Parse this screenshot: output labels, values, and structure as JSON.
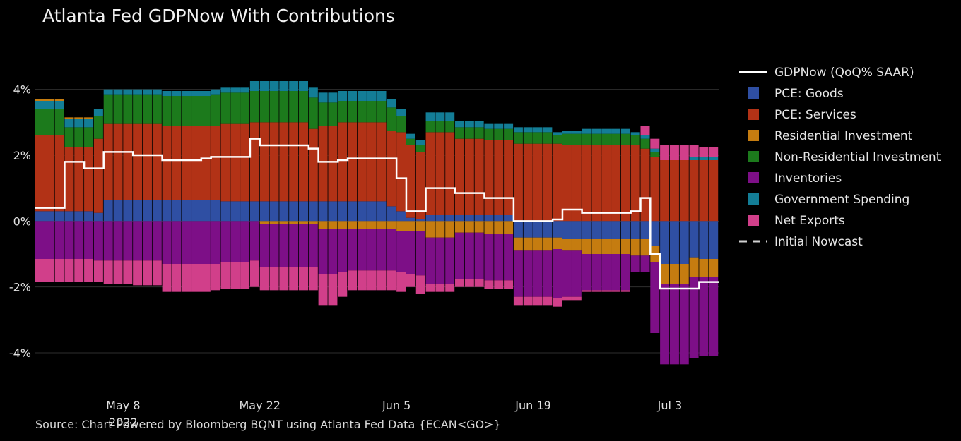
{
  "title": "Atlanta Fed GDPNow With Contributions",
  "source": "Source: Chart Powered by Bloomberg BQNT using Atlanta Fed Data   {ECAN<GO>}",
  "chart_data": {
    "type": "bar",
    "stacked": true,
    "x_start": "2022-04-29",
    "x_end": "2022-07-08",
    "ylim": [
      -5.5,
      5.0
    ],
    "yticks": [
      {
        "v": 4,
        "label": "4%"
      },
      {
        "v": 2,
        "label": "2%"
      },
      {
        "v": 0,
        "label": "0%"
      },
      {
        "v": -2,
        "label": "-2%"
      },
      {
        "v": -4,
        "label": "-4%"
      }
    ],
    "xticks": [
      {
        "date": "2022-05-08",
        "label": "May 8",
        "sub": "2022"
      },
      {
        "date": "2022-05-22",
        "label": "May 22"
      },
      {
        "date": "2022-06-05",
        "label": "Jun 5"
      },
      {
        "date": "2022-06-19",
        "label": "Jun 19"
      },
      {
        "date": "2022-07-03",
        "label": "Jul 3"
      }
    ],
    "grid": true,
    "legend_position": "right",
    "colors": {
      "pce_goods": "#2f4fa3",
      "pce_services": "#b23216",
      "residential": "#c57c10",
      "nonresidential": "#1c7a1c",
      "inventories": "#7d0f87",
      "government": "#137d96",
      "net_exports": "#d13f8a",
      "gdpnow": "#ffffff",
      "grid": "#2e2e2e"
    },
    "legend": [
      {
        "key": "gdpnow",
        "label": "GDPNow (QoQ% SAAR)",
        "style": "line"
      },
      {
        "key": "pce_goods",
        "label": "PCE: Goods",
        "style": "box"
      },
      {
        "key": "pce_services",
        "label": "PCE: Services",
        "style": "box"
      },
      {
        "key": "residential",
        "label": "Residential Investment",
        "style": "box"
      },
      {
        "key": "nonresidential",
        "label": "Non-Residential Investment",
        "style": "box"
      },
      {
        "key": "inventories",
        "label": "Inventories",
        "style": "box"
      },
      {
        "key": "government",
        "label": "Government Spending",
        "style": "box"
      },
      {
        "key": "net_exports",
        "label": "Net Exports",
        "style": "box"
      },
      {
        "key": "initial",
        "label": "Initial Nowcast",
        "style": "dash"
      }
    ],
    "periods": [
      {
        "start": "2022-04-29",
        "end": "2022-05-02",
        "gdpnow": 0.4,
        "pce_goods": 0.3,
        "pce_services": 2.3,
        "residential": 0.05,
        "nonresidential": 0.8,
        "inventories": -1.15,
        "government": 0.25,
        "net_exports": -0.7
      },
      {
        "start": "2022-05-02",
        "end": "2022-05-04",
        "gdpnow": 1.8,
        "pce_goods": 0.3,
        "pce_services": 1.95,
        "residential": 0.05,
        "nonresidential": 0.6,
        "inventories": -1.15,
        "government": 0.25,
        "net_exports": -0.7
      },
      {
        "start": "2022-05-04",
        "end": "2022-05-05",
        "gdpnow": 1.6,
        "pce_goods": 0.3,
        "pce_services": 1.95,
        "residential": 0.05,
        "nonresidential": 0.6,
        "inventories": -1.15,
        "government": 0.25,
        "net_exports": -0.7
      },
      {
        "start": "2022-05-05",
        "end": "2022-05-06",
        "gdpnow": 1.6,
        "pce_goods": 0.25,
        "pce_services": 2.25,
        "residential": 0.0,
        "nonresidential": 0.7,
        "inventories": -1.2,
        "government": 0.2,
        "net_exports": -0.65
      },
      {
        "start": "2022-05-06",
        "end": "2022-05-09",
        "gdpnow": 2.1,
        "pce_goods": 0.65,
        "pce_services": 2.3,
        "residential": 0.0,
        "nonresidential": 0.9,
        "inventories": -1.2,
        "government": 0.15,
        "net_exports": -0.7
      },
      {
        "start": "2022-05-09",
        "end": "2022-05-12",
        "gdpnow": 2.0,
        "pce_goods": 0.65,
        "pce_services": 2.3,
        "residential": 0.0,
        "nonresidential": 0.9,
        "inventories": -1.2,
        "government": 0.15,
        "net_exports": -0.75
      },
      {
        "start": "2022-05-12",
        "end": "2022-05-16",
        "gdpnow": 1.85,
        "pce_goods": 0.65,
        "pce_services": 2.25,
        "residential": 0.0,
        "nonresidential": 0.9,
        "inventories": -1.3,
        "government": 0.15,
        "net_exports": -0.85
      },
      {
        "start": "2022-05-16",
        "end": "2022-05-17",
        "gdpnow": 1.9,
        "pce_goods": 0.65,
        "pce_services": 2.25,
        "residential": 0.0,
        "nonresidential": 0.9,
        "inventories": -1.3,
        "government": 0.15,
        "net_exports": -0.85
      },
      {
        "start": "2022-05-17",
        "end": "2022-05-18",
        "gdpnow": 1.95,
        "pce_goods": 0.65,
        "pce_services": 2.25,
        "residential": 0.0,
        "nonresidential": 0.95,
        "inventories": -1.3,
        "government": 0.15,
        "net_exports": -0.8
      },
      {
        "start": "2022-05-18",
        "end": "2022-05-21",
        "gdpnow": 1.95,
        "pce_goods": 0.6,
        "pce_services": 2.35,
        "residential": 0.0,
        "nonresidential": 0.95,
        "inventories": -1.25,
        "government": 0.15,
        "net_exports": -0.8
      },
      {
        "start": "2022-05-21",
        "end": "2022-05-22",
        "gdpnow": 2.5,
        "pce_goods": 0.6,
        "pce_services": 2.4,
        "residential": 0.0,
        "nonresidential": 0.95,
        "inventories": -1.2,
        "government": 0.3,
        "net_exports": -0.8
      },
      {
        "start": "2022-05-22",
        "end": "2022-05-27",
        "gdpnow": 2.3,
        "pce_goods": 0.6,
        "pce_services": 2.4,
        "residential": -0.1,
        "nonresidential": 0.95,
        "inventories": -1.3,
        "government": 0.3,
        "net_exports": -0.7
      },
      {
        "start": "2022-05-27",
        "end": "2022-05-28",
        "gdpnow": 2.2,
        "pce_goods": 0.6,
        "pce_services": 2.2,
        "residential": -0.1,
        "nonresidential": 0.95,
        "inventories": -1.3,
        "government": 0.3,
        "net_exports": -0.7
      },
      {
        "start": "2022-05-28",
        "end": "2022-05-30",
        "gdpnow": 1.8,
        "pce_goods": 0.6,
        "pce_services": 2.3,
        "residential": -0.25,
        "nonresidential": 0.7,
        "inventories": -1.35,
        "government": 0.3,
        "net_exports": -0.95
      },
      {
        "start": "2022-05-30",
        "end": "2022-05-31",
        "gdpnow": 1.85,
        "pce_goods": 0.6,
        "pce_services": 2.4,
        "residential": -0.25,
        "nonresidential": 0.65,
        "inventories": -1.3,
        "government": 0.3,
        "net_exports": -0.75
      },
      {
        "start": "2022-05-31",
        "end": "2022-06-04",
        "gdpnow": 1.9,
        "pce_goods": 0.6,
        "pce_services": 2.4,
        "residential": -0.25,
        "nonresidential": 0.65,
        "inventories": -1.25,
        "government": 0.3,
        "net_exports": -0.6
      },
      {
        "start": "2022-06-04",
        "end": "2022-06-05",
        "gdpnow": 1.9,
        "pce_goods": 0.45,
        "pce_services": 2.3,
        "residential": -0.25,
        "nonresidential": 0.7,
        "inventories": -1.25,
        "government": 0.25,
        "net_exports": -0.6
      },
      {
        "start": "2022-06-05",
        "end": "2022-06-06",
        "gdpnow": 1.3,
        "pce_goods": 0.3,
        "pce_services": 2.4,
        "residential": -0.3,
        "nonresidential": 0.5,
        "inventories": -1.25,
        "government": 0.2,
        "net_exports": -0.6
      },
      {
        "start": "2022-06-06",
        "end": "2022-06-07",
        "gdpnow": 0.3,
        "pce_goods": 0.1,
        "pce_services": 2.2,
        "residential": -0.3,
        "nonresidential": 0.2,
        "inventories": -1.3,
        "government": 0.15,
        "net_exports": -0.4
      },
      {
        "start": "2022-06-07",
        "end": "2022-06-08",
        "gdpnow": 0.3,
        "pce_goods": 0.05,
        "pce_services": 2.05,
        "residential": -0.3,
        "nonresidential": 0.2,
        "inventories": -1.35,
        "government": 0.15,
        "net_exports": -0.55
      },
      {
        "start": "2022-06-08",
        "end": "2022-06-11",
        "gdpnow": 1.0,
        "pce_goods": 0.2,
        "pce_services": 2.5,
        "residential": -0.5,
        "nonresidential": 0.35,
        "inventories": -1.4,
        "government": 0.25,
        "net_exports": -0.25
      },
      {
        "start": "2022-06-11",
        "end": "2022-06-14",
        "gdpnow": 0.85,
        "pce_goods": 0.2,
        "pce_services": 2.3,
        "residential": -0.35,
        "nonresidential": 0.35,
        "inventories": -1.4,
        "government": 0.2,
        "net_exports": -0.25
      },
      {
        "start": "2022-06-14",
        "end": "2022-06-17",
        "gdpnow": 0.7,
        "pce_goods": 0.2,
        "pce_services": 2.25,
        "residential": -0.4,
        "nonresidential": 0.35,
        "inventories": -1.4,
        "government": 0.15,
        "net_exports": -0.25
      },
      {
        "start": "2022-06-17",
        "end": "2022-06-21",
        "gdpnow": 0.0,
        "pce_goods": -0.5,
        "pce_services": 2.35,
        "residential": -0.4,
        "nonresidential": 0.35,
        "inventories": -1.4,
        "government": 0.15,
        "net_exports": -0.25
      },
      {
        "start": "2022-06-21",
        "end": "2022-06-22",
        "gdpnow": 0.05,
        "pce_goods": -0.5,
        "pce_services": 2.35,
        "residential": -0.35,
        "nonresidential": 0.25,
        "inventories": -1.5,
        "government": 0.1,
        "net_exports": -0.25
      },
      {
        "start": "2022-06-22",
        "end": "2022-06-24",
        "gdpnow": 0.35,
        "pce_goods": -0.55,
        "pce_services": 2.3,
        "residential": -0.35,
        "nonresidential": 0.35,
        "inventories": -1.4,
        "government": 0.1,
        "net_exports": -0.1
      },
      {
        "start": "2022-06-24",
        "end": "2022-06-29",
        "gdpnow": 0.25,
        "pce_goods": -0.55,
        "pce_services": 2.3,
        "residential": -0.45,
        "nonresidential": 0.35,
        "inventories": -1.1,
        "government": 0.15,
        "net_exports": -0.05
      },
      {
        "start": "2022-06-29",
        "end": "2022-06-30",
        "gdpnow": 0.3,
        "pce_goods": -0.55,
        "pce_services": 2.3,
        "residential": -0.5,
        "nonresidential": 0.3,
        "inventories": -0.5,
        "government": 0.1,
        "net_exports": 0.0
      },
      {
        "start": "2022-06-30",
        "end": "2022-07-01",
        "gdpnow": 0.7,
        "pce_goods": -0.55,
        "pce_services": 2.2,
        "residential": -0.5,
        "nonresidential": 0.3,
        "inventories": -0.5,
        "government": 0.1,
        "net_exports": 0.3
      },
      {
        "start": "2022-07-01",
        "end": "2022-07-02",
        "gdpnow": -1.0,
        "pce_goods": -0.75,
        "pce_services": 1.95,
        "residential": -0.5,
        "nonresidential": 0.15,
        "inventories": -2.15,
        "government": 0.1,
        "net_exports": 0.3
      },
      {
        "start": "2022-07-02",
        "end": "2022-07-05",
        "gdpnow": -2.05,
        "pce_goods": -1.3,
        "pce_services": 1.85,
        "residential": -0.6,
        "nonresidential": 0.0,
        "inventories": -2.45,
        "government": 0.0,
        "net_exports": 0.45
      },
      {
        "start": "2022-07-05",
        "end": "2022-07-06",
        "gdpnow": -2.05,
        "pce_goods": -1.1,
        "pce_services": 1.85,
        "residential": -0.6,
        "nonresidential": 0.0,
        "inventories": -2.45,
        "government": 0.1,
        "net_exports": 0.35
      },
      {
        "start": "2022-07-06",
        "end": "2022-07-08",
        "gdpnow": -1.85,
        "pce_goods": -1.15,
        "pce_services": 1.85,
        "residential": -0.55,
        "nonresidential": 0.0,
        "inventories": -2.4,
        "government": 0.1,
        "net_exports": 0.3
      }
    ]
  }
}
